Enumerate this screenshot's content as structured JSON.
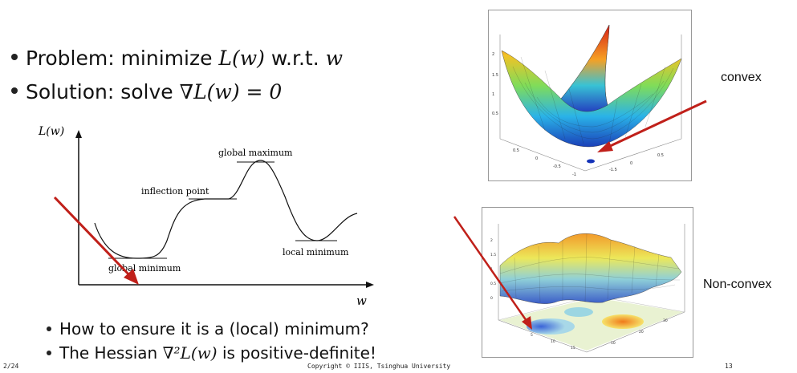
{
  "bullets": {
    "problem_prefix": "Problem: minimize ",
    "problem_math": "L(w)",
    "problem_mid": " w.r.t. ",
    "problem_var": "w",
    "solution_prefix": "Solution: solve ",
    "solution_math": "∇L(w) = 0"
  },
  "sub_bullets": {
    "q1": "How to ensure it is a (local) minimum?",
    "q2_prefix": "The Hessian ",
    "q2_math": "∇²L(w)",
    "q2_suffix": " is positive-definite!"
  },
  "graph": {
    "y_axis_label": "L(w)",
    "x_axis_label": "w",
    "labels": {
      "global_maximum": "global maximum",
      "inflection_point": "inflection point",
      "local_minimum": "local minimum",
      "global_minimum": "global minimum"
    }
  },
  "side_labels": {
    "convex": "convex",
    "non_convex": "Non-convex"
  },
  "footer": {
    "left": "2/24",
    "center": "Copyright © IIIS, Tsinghua University",
    "right": "13"
  },
  "colors": {
    "arrow": "#c0201a",
    "axis": "#111111"
  }
}
